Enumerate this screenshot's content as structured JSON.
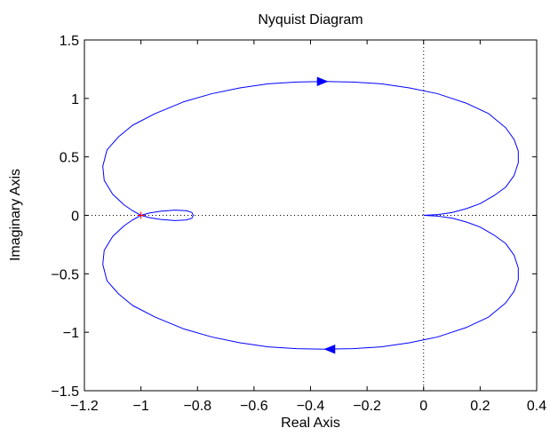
{
  "chart_data": {
    "type": "line",
    "title": "Nyquist Diagram",
    "xlabel": "Real Axis",
    "ylabel": "Imaginary Axis",
    "xlim": [
      -1.2,
      0.4
    ],
    "ylim": [
      -1.5,
      1.5
    ],
    "x_ticks": [
      -1.2,
      -1,
      -0.8,
      -0.6,
      -0.4,
      -0.2,
      0,
      0.2,
      0.4
    ],
    "x_tick_labels": [
      "−1.2",
      "−1",
      "−0.8",
      "−0.6",
      "−0.4",
      "−0.2",
      "0",
      "0.2",
      "0.4"
    ],
    "y_ticks": [
      1.5,
      1,
      0.5,
      0,
      -0.5,
      -1,
      -1.5
    ],
    "y_tick_labels": [
      "1.5",
      "1",
      "0.5",
      "0",
      "−0.5",
      "−1",
      "−1.5"
    ],
    "grid": false,
    "reference_lines": [
      {
        "orientation": "horizontal",
        "value": 0,
        "style": "dotted"
      },
      {
        "orientation": "vertical",
        "value": 0,
        "style": "dotted"
      }
    ],
    "critical_point": {
      "x": -1,
      "y": 0,
      "marker": "+",
      "color": "#ff0000"
    },
    "series": [
      {
        "color": "#0000ff",
        "points": [
          [
            0,
            0
          ],
          [
            0.05,
            0.007
          ],
          [
            0.1,
            0.024
          ],
          [
            0.15,
            0.056
          ],
          [
            0.2,
            0.1
          ],
          [
            0.25,
            0.17
          ],
          [
            0.29,
            0.24
          ],
          [
            0.32,
            0.34
          ],
          [
            0.335,
            0.45
          ],
          [
            0.335,
            0.55
          ],
          [
            0.32,
            0.65
          ],
          [
            0.29,
            0.75
          ],
          [
            0.23,
            0.87
          ],
          [
            0.15,
            0.96
          ],
          [
            0.05,
            1.04
          ],
          [
            -0.05,
            1.09
          ],
          [
            -0.15,
            1.125
          ],
          [
            -0.25,
            1.14
          ],
          [
            -0.35,
            1.145
          ],
          [
            -0.45,
            1.14
          ],
          [
            -0.55,
            1.125
          ],
          [
            -0.65,
            1.09
          ],
          [
            -0.75,
            1.04
          ],
          [
            -0.85,
            0.97
          ],
          [
            -0.95,
            0.87
          ],
          [
            -1.03,
            0.77
          ],
          [
            -1.08,
            0.67
          ],
          [
            -1.12,
            0.56
          ],
          [
            -1.135,
            0.42
          ],
          [
            -1.13,
            0.3
          ],
          [
            -1.1,
            0.18
          ],
          [
            -1.06,
            0.09
          ],
          [
            -1.03,
            0.04
          ],
          [
            -1.0,
            0.0
          ],
          [
            -0.97,
            0.02
          ],
          [
            -0.93,
            0.035
          ],
          [
            -0.88,
            0.045
          ],
          [
            -0.84,
            0.04
          ],
          [
            -0.82,
            0.025
          ],
          [
            -0.815,
            0.0
          ],
          [
            -0.82,
            -0.025
          ],
          [
            -0.84,
            -0.04
          ],
          [
            -0.88,
            -0.045
          ],
          [
            -0.93,
            -0.035
          ],
          [
            -0.97,
            -0.02
          ],
          [
            -1.0,
            0.0
          ],
          [
            -1.03,
            -0.04
          ],
          [
            -1.06,
            -0.09
          ],
          [
            -1.1,
            -0.18
          ],
          [
            -1.13,
            -0.3
          ],
          [
            -1.135,
            -0.42
          ],
          [
            -1.12,
            -0.56
          ],
          [
            -1.08,
            -0.67
          ],
          [
            -1.03,
            -0.77
          ],
          [
            -0.95,
            -0.87
          ],
          [
            -0.85,
            -0.97
          ],
          [
            -0.75,
            -1.04
          ],
          [
            -0.65,
            -1.09
          ],
          [
            -0.55,
            -1.125
          ],
          [
            -0.45,
            -1.14
          ],
          [
            -0.35,
            -1.145
          ],
          [
            -0.25,
            -1.14
          ],
          [
            -0.15,
            -1.125
          ],
          [
            -0.05,
            -1.09
          ],
          [
            0.05,
            -1.04
          ],
          [
            0.15,
            -0.96
          ],
          [
            0.23,
            -0.87
          ],
          [
            0.29,
            -0.75
          ],
          [
            0.32,
            -0.65
          ],
          [
            0.335,
            -0.55
          ],
          [
            0.335,
            -0.45
          ],
          [
            0.32,
            -0.34
          ],
          [
            0.29,
            -0.24
          ],
          [
            0.25,
            -0.17
          ],
          [
            0.2,
            -0.1
          ],
          [
            0.15,
            -0.056
          ],
          [
            0.1,
            -0.024
          ],
          [
            0.05,
            -0.007
          ],
          [
            0,
            0
          ]
        ],
        "arrows": [
          {
            "x": -0.36,
            "y": 1.145,
            "direction": "right"
          },
          {
            "x": -0.33,
            "y": -1.145,
            "direction": "left"
          }
        ]
      }
    ]
  }
}
